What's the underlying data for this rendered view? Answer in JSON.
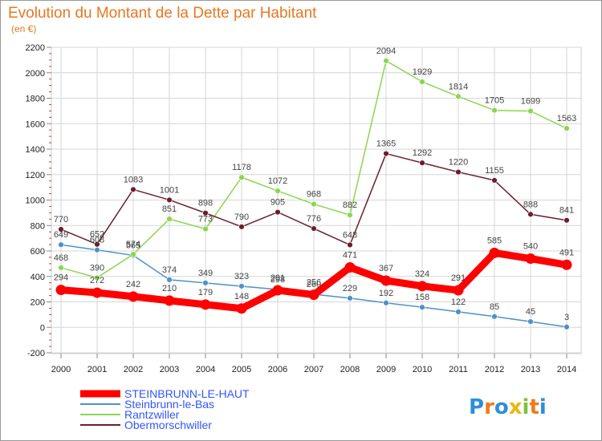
{
  "colors": {
    "title": "#e87722",
    "grid": "#d6d6d6",
    "frame": "#888888",
    "tick_text": "#222222",
    "label_text": "#444444"
  },
  "chart_data": {
    "type": "line",
    "title": "Evolution du Montant de la Dette par Habitant",
    "subtitle": "(en €)",
    "xlabel": "",
    "ylabel": "",
    "ylim": [
      -200,
      2200
    ],
    "ytick_step": 200,
    "grid": true,
    "legend_position": "bottom-left",
    "x": [
      "2000",
      "2001",
      "2002",
      "2003",
      "2004",
      "2005",
      "2006",
      "2007",
      "2008",
      "2009",
      "2010",
      "2011",
      "2012",
      "2013",
      "2014"
    ],
    "series": [
      {
        "name": "STEINBRUNN-LE-HAUT",
        "color": "#ff0000",
        "emphasis": true,
        "values": [
          294,
          272,
          242,
          210,
          179,
          148,
          291,
          256,
          471,
          367,
          324,
          291,
          585,
          540,
          491
        ]
      },
      {
        "name": "Steinbrunn-le-Bas",
        "color": "#4e91c8",
        "emphasis": false,
        "values": [
          649,
          608,
          565,
          374,
          349,
          323,
          298,
          260,
          229,
          192,
          158,
          122,
          85,
          45,
          3
        ]
      },
      {
        "name": "Rantzwiller",
        "color": "#8bd650",
        "emphasis": false,
        "values": [
          468,
          390,
          574,
          851,
          773,
          1178,
          1072,
          968,
          882,
          2094,
          1929,
          1814,
          1705,
          1699,
          1563
        ]
      },
      {
        "name": "Obermorschwiller",
        "color": "#6b1f2a",
        "emphasis": false,
        "values": [
          770,
          652,
          1083,
          1001,
          898,
          790,
          905,
          776,
          648,
          1365,
          1292,
          1220,
          1155,
          888,
          841
        ]
      }
    ]
  },
  "logo": {
    "text": "Proxiti",
    "letter_colors": [
      "#2e8fd8",
      "#f07a1c",
      "#2e8fd8",
      "#e8b812",
      "#7cc242",
      "#f07a1c",
      "#2e8fd8"
    ]
  }
}
